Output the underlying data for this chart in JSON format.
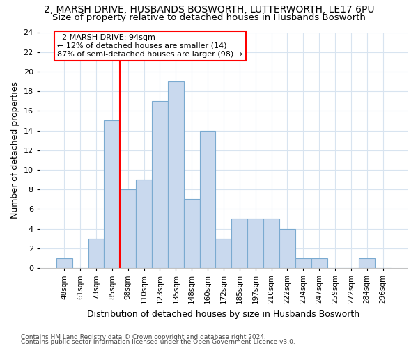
{
  "title_line1": "2, MARSH DRIVE, HUSBANDS BOSWORTH, LUTTERWORTH, LE17 6PU",
  "title_line2": "Size of property relative to detached houses in Husbands Bosworth",
  "xlabel": "Distribution of detached houses by size in Husbands Bosworth",
  "ylabel": "Number of detached properties",
  "bar_labels": [
    "48sqm",
    "61sqm",
    "73sqm",
    "85sqm",
    "98sqm",
    "110sqm",
    "123sqm",
    "135sqm",
    "148sqm",
    "160sqm",
    "172sqm",
    "185sqm",
    "197sqm",
    "210sqm",
    "222sqm",
    "234sqm",
    "247sqm",
    "259sqm",
    "272sqm",
    "284sqm",
    "296sqm"
  ],
  "bar_values": [
    1,
    0,
    3,
    15,
    8,
    9,
    17,
    19,
    7,
    14,
    3,
    5,
    5,
    5,
    4,
    1,
    1,
    0,
    0,
    1,
    0
  ],
  "bar_color": "#c9d9ee",
  "bar_edge_color": "#7aaad0",
  "vline_color": "red",
  "vline_x": 3.5,
  "ylim": [
    0,
    24
  ],
  "yticks": [
    0,
    2,
    4,
    6,
    8,
    10,
    12,
    14,
    16,
    18,
    20,
    22,
    24
  ],
  "annotation_title": "2 MARSH DRIVE: 94sqm",
  "annotation_line1": "← 12% of detached houses are smaller (14)",
  "annotation_line2": "87% of semi-detached houses are larger (98) →",
  "footnote1": "Contains HM Land Registry data © Crown copyright and database right 2024.",
  "footnote2": "Contains public sector information licensed under the Open Government Licence v3.0.",
  "bg_color": "#ffffff",
  "grid_color": "#d8e4f0",
  "title1_fontsize": 10,
  "title2_fontsize": 9.5,
  "ylabel_fontsize": 9,
  "xlabel_fontsize": 9,
  "tick_fontsize": 7.5,
  "annot_fontsize": 8,
  "footnote_fontsize": 6.5
}
